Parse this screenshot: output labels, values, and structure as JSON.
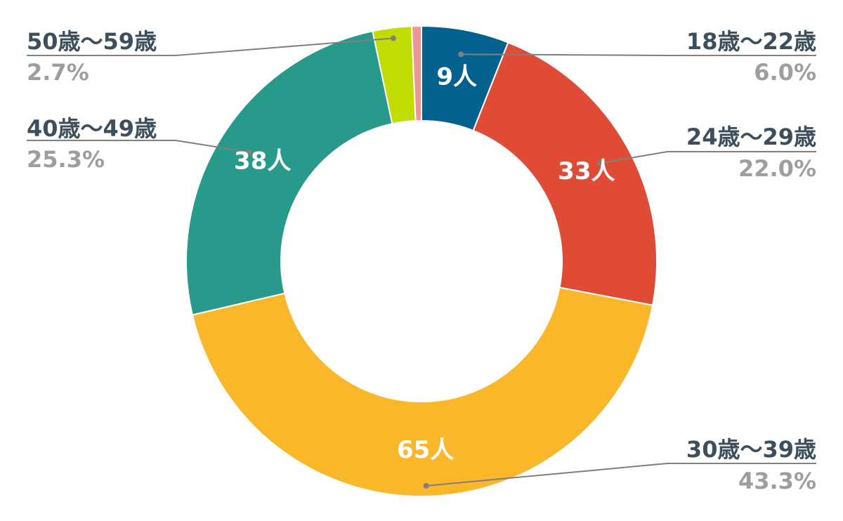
{
  "chart_data": {
    "type": "pie",
    "variant": "donut",
    "title": "",
    "legend": "none",
    "slices": [
      {
        "label": "18歳〜22歳",
        "count": 9,
        "count_label": "9人",
        "percent_label": "6.0%",
        "color": "#03618f"
      },
      {
        "label": "24歳〜29歳",
        "count": 33,
        "count_label": "33人",
        "percent_label": "22.0%",
        "color": "#e04b36"
      },
      {
        "label": "30歳〜39歳",
        "count": 65,
        "count_label": "65人",
        "percent_label": "43.3%",
        "color": "#fbb72a"
      },
      {
        "label": "40歳〜49歳",
        "count": 38,
        "count_label": "38人",
        "percent_label": "25.3%",
        "color": "#289a8c"
      },
      {
        "label": "50歳〜59歳",
        "count": 4,
        "count_label": "",
        "percent_label": "2.7%",
        "color": "#c1dc00"
      },
      {
        "label": "",
        "count": 1,
        "count_label": "",
        "percent_label": "",
        "color": "#ef9797"
      }
    ],
    "colors": {
      "category_text": "#3d4f5c",
      "percent_text": "#9e9e9e",
      "count_text": "#ffffff",
      "leader_line": "#7f7f7f"
    }
  }
}
